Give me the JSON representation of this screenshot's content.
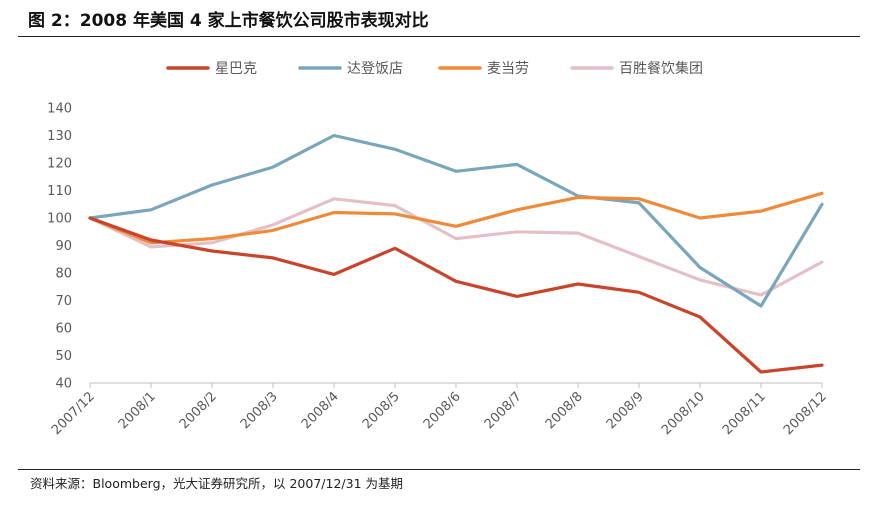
{
  "figure": {
    "title": "图 2：2008 年美国 4 家上市餐饮公司股市表现对比",
    "source": "资料来源：Bloomberg，光大证券研究所，以 2007/12/31 为基期"
  },
  "chart_data": {
    "type": "line",
    "x": [
      "2007/12",
      "2008/1",
      "2008/2",
      "2008/3",
      "2008/4",
      "2008/5",
      "2008/6",
      "2008/7",
      "2008/8",
      "2008/9",
      "2008/10",
      "2008/11",
      "2008/12"
    ],
    "ylim": [
      40,
      140
    ],
    "yticks": [
      40,
      50,
      60,
      70,
      80,
      90,
      100,
      110,
      120,
      130,
      140
    ],
    "grid": false,
    "legend_position": "top",
    "series": [
      {
        "name": "星巴克",
        "color": "#c8442a",
        "values": [
          100,
          92,
          88,
          85.5,
          79.5,
          89,
          77,
          71.5,
          76,
          73,
          64,
          44,
          46.5
        ]
      },
      {
        "name": "达登饭店",
        "color": "#79a6ba",
        "values": [
          100,
          103,
          112,
          118.5,
          130,
          125,
          117,
          119.5,
          108,
          105.5,
          82,
          68,
          105
        ]
      },
      {
        "name": "麦当劳",
        "color": "#ef8a39",
        "values": [
          100,
          91,
          92.5,
          95.5,
          102,
          101.5,
          97,
          103,
          107.5,
          107,
          100,
          102.5,
          109
        ]
      },
      {
        "name": "百胜餐饮集团",
        "color": "#e4c0c6",
        "values": [
          100,
          89.5,
          91,
          97.5,
          107,
          104.5,
          92.5,
          95,
          94.5,
          86,
          77.5,
          72,
          84
        ]
      }
    ]
  }
}
